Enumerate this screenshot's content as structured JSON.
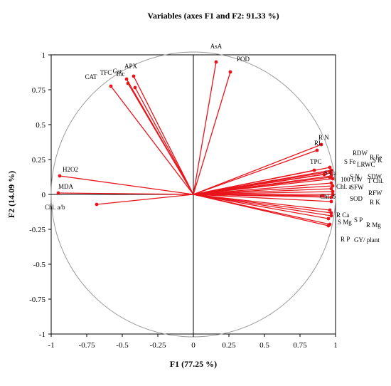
{
  "chart_data": {
    "type": "scatter",
    "title": "Variables (axes F1 and F2: 91.33 %)",
    "xlabel": "F1 (77.25 %)",
    "ylabel": "F2 (14.09 %)",
    "xlim": [
      -1,
      1
    ],
    "ylim": [
      -1,
      1
    ],
    "xticks": [
      "-1",
      "-0.75",
      "-0.5",
      "-0.25",
      "0",
      "0.25",
      "0.5",
      "0.75",
      "1"
    ],
    "yticks": [
      "-1",
      "-0.75",
      "-0.5",
      "-0.25",
      "0",
      "0.25",
      "0.5",
      "0.75",
      "1"
    ],
    "grid": false,
    "correlation_circle": true,
    "line_color": "#e8141b",
    "variables": [
      {
        "name": "AsA",
        "x": 0.16,
        "y": 0.93
      },
      {
        "name": "POD",
        "x": 0.26,
        "y": 0.86
      },
      {
        "name": "APX",
        "x": -0.42,
        "y": 0.83
      },
      {
        "name": "Car.",
        "x": -0.47,
        "y": 0.81
      },
      {
        "name": "TFC",
        "x": -0.46,
        "y": 0.78
      },
      {
        "name": "Toc",
        "x": -0.41,
        "y": 0.75
      },
      {
        "name": "CAT",
        "x": -0.58,
        "y": 0.76
      },
      {
        "name": "R N",
        "x": 0.9,
        "y": 0.35
      },
      {
        "name": "RL",
        "x": 0.87,
        "y": 0.31
      },
      {
        "name": "RDW",
        "x": 0.96,
        "y": 0.19
      },
      {
        "name": "R Fe",
        "x": 0.97,
        "y": 0.17
      },
      {
        "name": "S Fe",
        "x": 0.96,
        "y": 0.16
      },
      {
        "name": "S K",
        "x": 0.97,
        "y": 0.15
      },
      {
        "name": "TPC",
        "x": 0.85,
        "y": 0.17
      },
      {
        "name": "LRWC",
        "x": 0.97,
        "y": 0.13
      },
      {
        "name": "S Ca",
        "x": 0.92,
        "y": 0.14
      },
      {
        "name": "S N",
        "x": 0.96,
        "y": 0.12
      },
      {
        "name": "SDW",
        "x": 0.98,
        "y": 0.11
      },
      {
        "name": "100 GW",
        "x": 0.97,
        "y": 0.08
      },
      {
        "name": "T Chl.",
        "x": 0.98,
        "y": 0.06
      },
      {
        "name": "Chl. a",
        "x": 0.97,
        "y": 0.04
      },
      {
        "name": "SFW",
        "x": 0.98,
        "y": 0.02
      },
      {
        "name": "RFW",
        "x": 0.98,
        "y": 0.0
      },
      {
        "name": "Chl. b",
        "x": 0.91,
        "y": -0.01
      },
      {
        "name": "SOD",
        "x": 0.97,
        "y": -0.02
      },
      {
        "name": "R K",
        "x": 0.97,
        "y": -0.05
      },
      {
        "name": "R Ca",
        "x": 0.96,
        "y": -0.11
      },
      {
        "name": "S P",
        "x": 0.97,
        "y": -0.13
      },
      {
        "name": "R Mg",
        "x": 0.97,
        "y": -0.15
      },
      {
        "name": "S Mg",
        "x": 0.95,
        "y": -0.17
      },
      {
        "name": "GY/ plant",
        "x": 0.96,
        "y": -0.21
      },
      {
        "name": "R P",
        "x": 0.95,
        "y": -0.22
      },
      {
        "name": "H2O2",
        "x": -0.94,
        "y": 0.13
      },
      {
        "name": "MDA",
        "x": -0.95,
        "y": 0.01
      },
      {
        "name": "Chl. a/b",
        "x": -0.68,
        "y": -0.07
      }
    ]
  }
}
